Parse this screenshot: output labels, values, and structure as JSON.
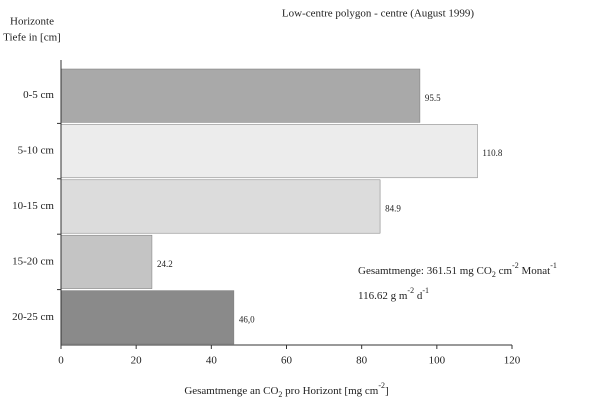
{
  "chart_data": {
    "type": "hbar",
    "title": "Low-centre polygon  - centre (August 1999)",
    "y_label": [
      "Horizonte",
      "Tiefe in [cm]"
    ],
    "x_label": [
      {
        "text": "Gesamtmenge an CO"
      },
      {
        "text": "2",
        "baseline": "sub"
      },
      {
        "text": " pro Horizont [mg cm"
      },
      {
        "text": "-2",
        "baseline": "super"
      },
      {
        "text": "]"
      }
    ],
    "annotations": [
      [
        {
          "text": "Gesamtmenge:  361.51  mg CO"
        },
        {
          "text": "2",
          "baseline": "sub"
        },
        {
          "text": " cm"
        },
        {
          "text": "-2",
          "baseline": "super"
        },
        {
          "text": " Monat"
        },
        {
          "text": "-1",
          "baseline": "super"
        }
      ],
      [
        {
          "text": "116.62  g m"
        },
        {
          "text": "-2",
          "baseline": "super"
        },
        {
          "text": " d"
        },
        {
          "text": "-1",
          "baseline": "super"
        }
      ]
    ],
    "categories": [
      "0-5 cm",
      "5-10 cm",
      "10-15 cm",
      "15-20 cm",
      "20-25 cm"
    ],
    "values": [
      95.5,
      110.8,
      84.9,
      24.2,
      46.0
    ],
    "value_labels": [
      "95.5",
      "110.8",
      "84.9",
      "24.2",
      "46,0"
    ],
    "colors": [
      "#a9a9a9",
      "#ececec",
      "#dcdcdc",
      "#c4c4c4",
      "#8a8a8a"
    ],
    "xlim": [
      0,
      120
    ],
    "xticks": [
      0,
      20,
      40,
      60,
      80,
      100,
      120
    ]
  }
}
